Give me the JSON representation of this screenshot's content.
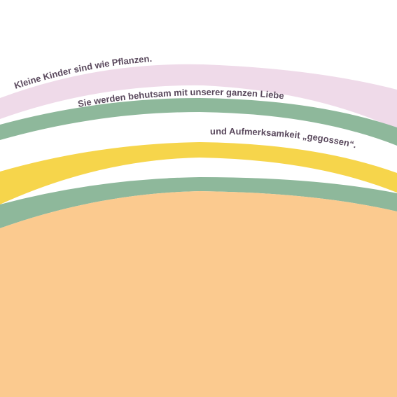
{
  "lines": [
    "Kleine Kinder sind wie Pflanzen.",
    "Sie werden behutsam mit unserer ganzen Liebe",
    "und Aufmerksamkeit „gegossen“."
  ]
}
